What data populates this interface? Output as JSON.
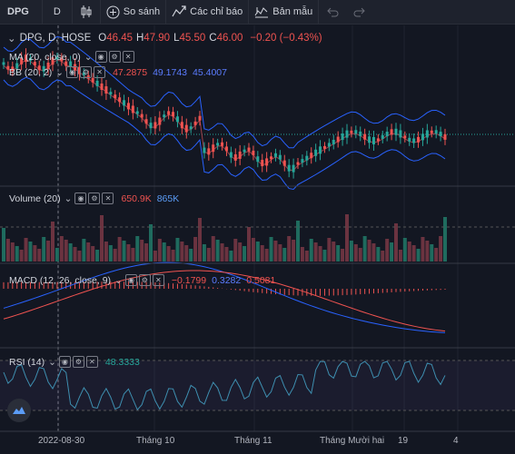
{
  "toolbar": {
    "symbol": "DPG",
    "interval": "D",
    "compare_label": "So sánh",
    "indicators_label": "Các chỉ báo",
    "templates_label": "Bản mẫu"
  },
  "main_legend": {
    "title": "DPG, D, HOSE",
    "o_label": "O",
    "o_value": "46.45",
    "h_label": "H",
    "h_value": "47.90",
    "l_label": "L",
    "l_value": "45.50",
    "c_label": "C",
    "c_value": "46.00",
    "change": "−0.20 (−0.43%)"
  },
  "ma_legend": {
    "label": "MA (20, close, 0)"
  },
  "bb_legend": {
    "label": "BB (20, 2)",
    "v1": "47.2875",
    "v2": "49.1743",
    "v3": "45.4007"
  },
  "volume_legend": {
    "label": "Volume (20)",
    "v1": "650.9K",
    "v2": "865K"
  },
  "macd_legend": {
    "label": "MACD (12, 26, close, 9)",
    "v1": "−0.1799",
    "v2": "0.3282",
    "v3": "0.5081"
  },
  "rsi_legend": {
    "label": "RSI (14)",
    "v1": "48.3333"
  },
  "x_axis": {
    "labels": [
      "2022-08-30",
      "Tháng 10",
      "Tháng 11",
      "Tháng Mười hai",
      "19",
      "4"
    ]
  },
  "colors": {
    "background": "#131722",
    "up": "#26a69a",
    "down": "#ef5350",
    "bb_band": "#2962ff",
    "ma": "#ef5350",
    "macd": "#2962ff",
    "signal": "#ef5350",
    "rsi": "#26a69a"
  },
  "icons": [
    "candles-icon",
    "plus-circle-icon",
    "indicators-icon",
    "templates-icon",
    "undo-icon",
    "redo-icon",
    "eye-icon",
    "settings-icon",
    "close-icon",
    "tradingview-logo-icon"
  ]
}
